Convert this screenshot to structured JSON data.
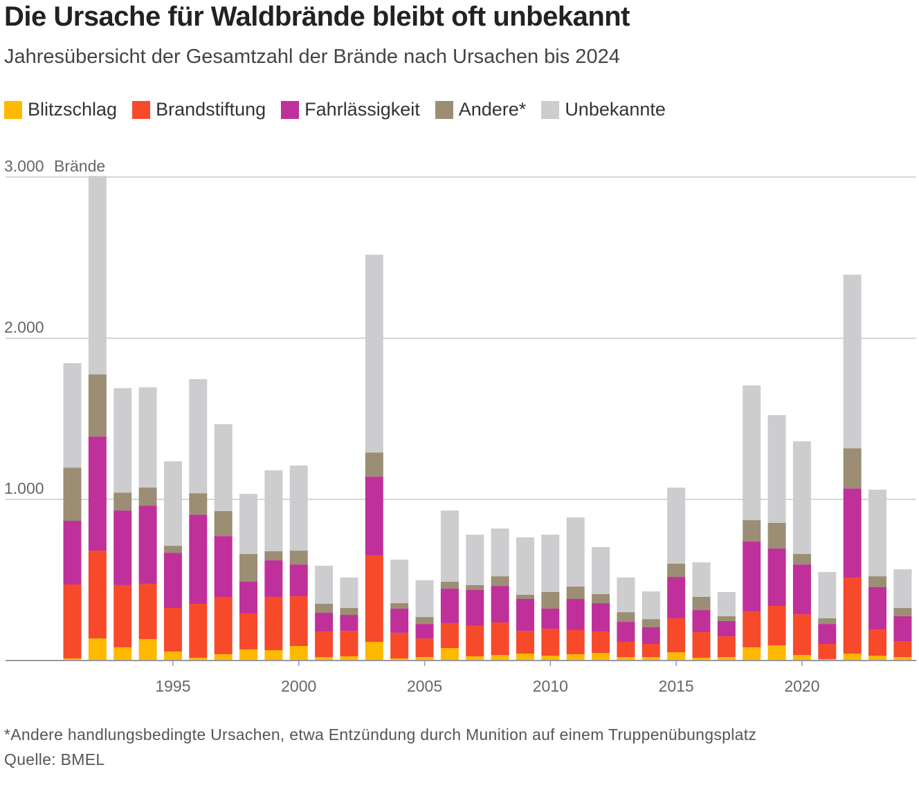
{
  "title": "Die Ursache für Waldbrände bleibt oft unbekannt",
  "subtitle": "Jahresübersicht der Gesamtzahl der Brände nach Ursachen bis 2024",
  "footnote": "*Andere handlungsbedingte Ursachen, etwa Entzündung durch Munition auf einem Truppenübungsplatz",
  "source": "Quelle: BMEL",
  "chart_data": {
    "type": "bar",
    "stacked": true,
    "ylabel": "Brände",
    "ylim": [
      0,
      3000
    ],
    "yticks": [
      {
        "v": 1000,
        "label": "1.000"
      },
      {
        "v": 2000,
        "label": "2.000"
      },
      {
        "v": 3000,
        "label": "3.000"
      }
    ],
    "xticks": [
      1995,
      2000,
      2005,
      2010,
      2015,
      2020
    ],
    "legend_placement": "top-left",
    "grid": true,
    "categories": [
      1991,
      1992,
      1993,
      1994,
      1995,
      1996,
      1997,
      1998,
      1999,
      2000,
      2001,
      2002,
      2003,
      2004,
      2005,
      2006,
      2007,
      2008,
      2009,
      2010,
      2011,
      2012,
      2013,
      2014,
      2015,
      2016,
      2017,
      2018,
      2019,
      2020,
      2021,
      2022,
      2023,
      2024
    ],
    "series": [
      {
        "name": "Blitzschlag",
        "color": "#ffb900",
        "values": [
          13,
          137,
          82,
          133,
          56,
          17,
          39,
          69,
          64,
          90,
          21,
          26,
          116,
          13,
          21,
          77,
          26,
          34,
          43,
          30,
          39,
          47,
          21,
          21,
          51,
          17,
          21,
          82,
          94,
          34,
          9,
          43,
          30,
          21
        ]
      },
      {
        "name": "Brandstiftung",
        "color": "#f64a2b",
        "values": [
          459,
          545,
          386,
          343,
          270,
          335,
          356,
          223,
          331,
          309,
          159,
          158,
          536,
          159,
          116,
          155,
          189,
          202,
          141,
          167,
          150,
          133,
          95,
          82,
          211,
          159,
          129,
          223,
          245,
          253,
          94,
          472,
          163,
          99
        ]
      },
      {
        "name": "Fahrlässigkeit",
        "color": "#c0309a",
        "values": [
          395,
          708,
          463,
          485,
          343,
          553,
          377,
          197,
          227,
          197,
          116,
          99,
          489,
          150,
          90,
          214,
          223,
          227,
          198,
          125,
          193,
          176,
          124,
          103,
          257,
          137,
          95,
          433,
          356,
          309,
          124,
          553,
          262,
          155
        ]
      },
      {
        "name": "Andere*",
        "color": "#9b8e74",
        "values": [
          330,
          386,
          111,
          112,
          43,
          133,
          155,
          172,
          56,
          86,
          56,
          43,
          150,
          34,
          43,
          43,
          30,
          60,
          26,
          103,
          77,
          56,
          60,
          51,
          82,
          82,
          30,
          133,
          159,
          65,
          35,
          249,
          68,
          51
        ]
      },
      {
        "name": "Unbekannte",
        "color": "#cdcdcf",
        "values": [
          648,
          1231,
          648,
          622,
          524,
          708,
          540,
          373,
          502,
          528,
          236,
          189,
          1227,
          270,
          228,
          442,
          313,
          296,
          356,
          356,
          429,
          292,
          215,
          172,
          472,
          214,
          150,
          836,
          669,
          699,
          287,
          1077,
          537,
          240
        ]
      }
    ]
  }
}
